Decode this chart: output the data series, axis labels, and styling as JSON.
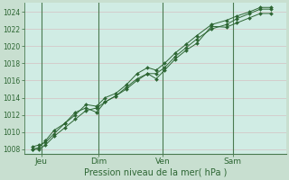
{
  "xlabel": "Pression niveau de la mer( hPa )",
  "bg_color": "#c8dfd0",
  "plot_bg_color": "#d0ece4",
  "grid_color_h": "#d4c8c8",
  "grid_color_v": "#d4c8c8",
  "vline_color": "#4a7a50",
  "line_color": "#2d6633",
  "marker_color": "#2d6633",
  "tick_label_color": "#2d6633",
  "xlabel_color": "#2d6633",
  "ylim": [
    1007.5,
    1025.0
  ],
  "xlim": [
    -0.3,
    12.0
  ],
  "yticks": [
    1008,
    1010,
    1012,
    1014,
    1016,
    1018,
    1020,
    1022,
    1024
  ],
  "day_labels": [
    "Jeu",
    "Dim",
    "Ven",
    "Sam"
  ],
  "day_positions": [
    0.5,
    3.2,
    6.2,
    9.5
  ],
  "vline_positions": [
    0.5,
    3.2,
    6.2,
    9.5
  ],
  "series1_x": [
    0.1,
    0.4,
    0.7,
    1.1,
    1.6,
    2.1,
    2.6,
    3.1,
    3.5,
    4.0,
    4.5,
    5.0,
    5.5,
    5.9,
    6.3,
    6.8,
    7.3,
    7.8,
    8.5,
    9.2,
    9.7,
    10.3,
    10.8,
    11.3
  ],
  "series1_y": [
    1008.3,
    1008.5,
    1008.8,
    1009.8,
    1011.0,
    1012.3,
    1012.8,
    1012.3,
    1013.5,
    1014.2,
    1015.2,
    1016.2,
    1016.8,
    1016.2,
    1017.2,
    1018.5,
    1019.5,
    1020.3,
    1022.3,
    1022.2,
    1022.7,
    1023.3,
    1023.8,
    1023.8
  ],
  "series2_x": [
    0.1,
    0.4,
    0.7,
    1.1,
    1.6,
    2.1,
    2.6,
    3.1,
    3.5,
    4.0,
    4.5,
    5.0,
    5.5,
    5.9,
    6.3,
    6.8,
    7.3,
    7.8,
    8.5,
    9.2,
    9.7,
    10.3,
    10.8,
    11.3
  ],
  "series2_y": [
    1008.0,
    1008.0,
    1008.5,
    1009.5,
    1010.5,
    1011.5,
    1012.5,
    1012.8,
    1013.5,
    1014.2,
    1015.0,
    1016.0,
    1016.8,
    1016.8,
    1017.5,
    1018.8,
    1019.8,
    1020.8,
    1022.0,
    1022.5,
    1023.2,
    1023.8,
    1024.3,
    1024.3
  ],
  "series3_x": [
    0.1,
    0.4,
    0.7,
    1.1,
    1.6,
    2.1,
    2.6,
    3.1,
    3.5,
    4.0,
    4.5,
    5.0,
    5.5,
    5.9,
    6.3,
    6.8,
    7.3,
    7.8,
    8.5,
    9.2,
    9.7,
    10.3,
    10.8,
    11.3
  ],
  "series3_y": [
    1008.0,
    1008.2,
    1009.0,
    1010.2,
    1011.0,
    1012.0,
    1013.2,
    1013.0,
    1014.0,
    1014.5,
    1015.5,
    1016.8,
    1017.5,
    1017.2,
    1018.0,
    1019.2,
    1020.2,
    1021.2,
    1022.5,
    1023.0,
    1023.5,
    1024.0,
    1024.5,
    1024.5
  ]
}
